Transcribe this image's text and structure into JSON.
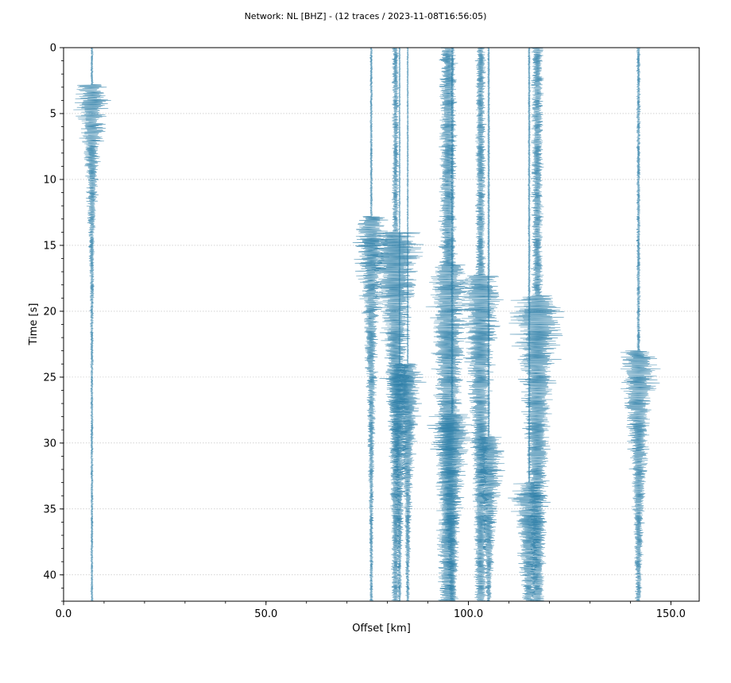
{
  "chart_data": {
    "type": "line",
    "title": "Network: NL [BHZ] - (12 traces / 2023-11-08T16:56:05)",
    "xlabel": "Offset [km]",
    "ylabel": "Time [s]",
    "xlim": [
      0,
      157
    ],
    "ylim": [
      42,
      0
    ],
    "y_inverted": true,
    "x_ticks": [
      0,
      50,
      100,
      150
    ],
    "x_tick_labels": [
      "0.0",
      "50.0",
      "100.0",
      "150.0"
    ],
    "x_minor_step": 10,
    "y_ticks": [
      0,
      5,
      10,
      15,
      20,
      25,
      30,
      35,
      40
    ],
    "y_tick_labels": [
      "0",
      "5",
      "10",
      "15",
      "20",
      "25",
      "30",
      "35",
      "40"
    ],
    "y_minor_step": 1,
    "grid": "horizontal dotted",
    "trace_color": "#2e7fa8",
    "traces": [
      {
        "offset_km": 7,
        "noise_km": 0.4,
        "arrival_s": 2.8,
        "onset_km": 7.0,
        "decay_s": 9
      },
      {
        "offset_km": 76,
        "noise_km": 0.4,
        "arrival_s": 12.8,
        "onset_km": 6.5,
        "decay_s": 14
      },
      {
        "offset_km": 82,
        "noise_km": 1.0,
        "arrival_s": 14.0,
        "onset_km": 10.0,
        "decay_s": 13
      },
      {
        "offset_km": 83,
        "noise_km": 0.2,
        "arrival_s": 24.0,
        "onset_km": 6.0,
        "decay_s": 12
      },
      {
        "offset_km": 85,
        "noise_km": 0.2,
        "arrival_s": 24.0,
        "onset_km": 6.0,
        "decay_s": 12
      },
      {
        "offset_km": 95,
        "noise_km": 2.5,
        "arrival_s": 16.5,
        "onset_km": 4.5,
        "decay_s": 20
      },
      {
        "offset_km": 96,
        "noise_km": 0.5,
        "arrival_s": 27.8,
        "onset_km": 9.0,
        "decay_s": 10
      },
      {
        "offset_km": 103,
        "noise_km": 1.5,
        "arrival_s": 17.2,
        "onset_km": 6.5,
        "decay_s": 16
      },
      {
        "offset_km": 105,
        "noise_km": 0.3,
        "arrival_s": 29.5,
        "onset_km": 7.0,
        "decay_s": 10
      },
      {
        "offset_km": 115,
        "noise_km": 0.3,
        "arrival_s": 33.0,
        "onset_km": 7.0,
        "decay_s": 12
      },
      {
        "offset_km": 117,
        "noise_km": 1.7,
        "arrival_s": 18.8,
        "onset_km": 8.0,
        "decay_s": 16
      },
      {
        "offset_km": 142,
        "noise_km": 0.6,
        "arrival_s": 23.0,
        "onset_km": 7.5,
        "decay_s": 12
      }
    ]
  }
}
